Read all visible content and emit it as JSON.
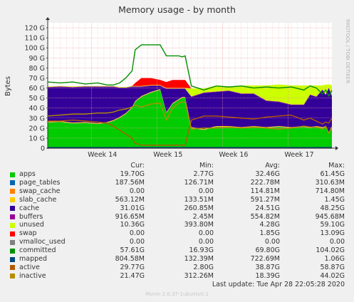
{
  "chart_data": {
    "type": "area",
    "title": "Memory usage - by month",
    "ylabel": "Bytes",
    "y_tick_labels": [
      "0",
      "10 G",
      "20 G",
      "30 G",
      "40 G",
      "50 G",
      "60 G",
      "70 G",
      "80 G",
      "90 G",
      "100 G",
      "110 G",
      "120 G"
    ],
    "x_tick_labels": [
      "Week 14",
      "Week 15",
      "Week 16",
      "Week 17"
    ],
    "ylim_gb": [
      0,
      125
    ],
    "watermark": "RRDTOOL / TOBI OETIKER",
    "grid": true,
    "x_days": [
      0,
      4,
      8,
      12,
      16,
      19,
      21,
      23,
      25,
      27,
      28,
      30,
      33,
      36,
      38,
      40,
      42,
      43,
      44,
      46,
      50,
      54,
      58,
      62,
      66,
      70,
      74,
      78,
      82,
      84,
      86,
      88,
      89,
      90,
      91
    ],
    "stacked_series_gb": [
      {
        "name": "apps",
        "color": "#00cc00",
        "values": [
          25.5,
          26,
          24.5,
          25,
          24,
          25,
          27,
          30,
          34,
          40,
          46,
          51,
          55,
          58,
          35,
          44,
          48,
          50,
          50,
          20,
          18,
          21,
          21,
          20,
          21,
          20,
          21,
          20,
          21,
          20,
          21,
          20,
          21,
          15,
          19.7
        ]
      },
      {
        "name": "page_tables",
        "color": "#0066b3",
        "values": [
          0.18,
          0.18,
          0.18,
          0.18,
          0.18,
          0.18,
          0.18,
          0.18,
          0.18,
          0.18,
          0.18,
          0.18,
          0.18,
          0.18,
          0.18,
          0.18,
          0.18,
          0.18,
          0.18,
          0.18,
          0.18,
          0.18,
          0.18,
          0.18,
          0.18,
          0.18,
          0.18,
          0.18,
          0.18,
          0.18,
          0.18,
          0.18,
          0.18,
          0.18,
          0.18
        ]
      },
      {
        "name": "swap_cache",
        "color": "#ff8000",
        "values": [
          0.2,
          0.2,
          0.2,
          0.2,
          0.2,
          0.2,
          0.2,
          0.2,
          0.2,
          0.2,
          0.2,
          0.2,
          0.2,
          0.2,
          0.2,
          0.2,
          0.2,
          0.2,
          0.2,
          0.2,
          0.2,
          0.2,
          0.2,
          0.2,
          0.2,
          0.2,
          0.2,
          0.2,
          0.2,
          0.2,
          0.2,
          0.2,
          0.2,
          0.2,
          0
        ]
      },
      {
        "name": "slab_cache",
        "color": "#ffcc00",
        "values": [
          0.6,
          0.6,
          0.6,
          0.6,
          0.6,
          0.6,
          0.6,
          0.6,
          0.6,
          0.6,
          0.6,
          0.6,
          0.6,
          0.6,
          0.6,
          0.6,
          0.6,
          0.6,
          0.6,
          0.6,
          0.6,
          0.6,
          0.6,
          0.6,
          0.6,
          0.6,
          0.6,
          0.6,
          0.6,
          0.6,
          0.6,
          0.6,
          0.6,
          0.6,
          0.56
        ]
      },
      {
        "name": "cache",
        "color": "#330099",
        "values": [
          34,
          34,
          35,
          35,
          36,
          35,
          33,
          29,
          25,
          20,
          14,
          9,
          6,
          3,
          23,
          14,
          10,
          8,
          8,
          30,
          36,
          34,
          35,
          33,
          32,
          26,
          24,
          22,
          21,
          32,
          29,
          37,
          31,
          44,
          31
        ]
      },
      {
        "name": "buffers",
        "color": "#990099",
        "values": [
          0.5,
          0.5,
          0.5,
          0.5,
          0.5,
          0.5,
          0.5,
          0.5,
          0.5,
          0.5,
          0.5,
          0.5,
          0.5,
          0.5,
          0.5,
          0.5,
          0.5,
          0.5,
          0.5,
          0.5,
          0.5,
          0.5,
          0.5,
          0.5,
          0.5,
          0.5,
          0.5,
          0.5,
          0.5,
          0.5,
          0.5,
          0.5,
          0.5,
          0.5,
          0.9
        ]
      },
      {
        "name": "unused",
        "color": "#ccff00",
        "values": [
          0.5,
          0.5,
          0.5,
          0.5,
          0.5,
          0.5,
          0.5,
          0.5,
          0.5,
          0.5,
          0.5,
          0.5,
          0.5,
          0.5,
          0.5,
          0.5,
          0.5,
          0.5,
          0.5,
          8,
          4,
          6,
          4,
          8,
          8,
          15,
          17,
          19,
          19,
          9,
          11,
          4,
          10,
          3,
          10.4
        ]
      },
      {
        "name": "swap",
        "color": "#ff0000",
        "values": [
          0,
          0,
          0,
          0,
          0,
          0,
          0,
          0,
          0,
          0,
          3,
          8,
          7,
          5,
          6,
          8,
          8,
          8,
          8,
          0,
          0,
          0,
          0,
          0,
          0,
          0,
          0,
          0,
          0,
          0,
          0,
          0,
          0,
          0,
          0
        ]
      }
    ],
    "line_series_gb": [
      {
        "name": "vmalloc_used",
        "color": "#808080",
        "values": [
          0,
          0,
          0,
          0,
          0,
          0,
          0,
          0,
          0,
          0,
          0,
          0,
          0,
          0,
          0,
          0,
          0,
          0,
          0,
          0,
          0,
          0,
          0,
          0,
          0,
          0,
          0,
          0,
          0,
          0,
          0,
          0,
          0,
          0,
          0
        ]
      },
      {
        "name": "committed",
        "color": "#008f00",
        "values": [
          66,
          65,
          66,
          64,
          65,
          63,
          63,
          65,
          70,
          77,
          98,
          103,
          103,
          103,
          92,
          92,
          92,
          91,
          92,
          62,
          58,
          62,
          61,
          62,
          60,
          61,
          60,
          61,
          58,
          62,
          60,
          54,
          58,
          52,
          57.6
        ]
      },
      {
        "name": "mapped",
        "color": "#00487d",
        "values": [
          0.7,
          0.7,
          0.7,
          0.7,
          0.7,
          0.7,
          0.7,
          0.7,
          0.7,
          0.7,
          0.7,
          0.7,
          0.7,
          0.7,
          0.7,
          0.7,
          0.7,
          0.7,
          0.7,
          0.7,
          0.7,
          0.7,
          0.7,
          0.7,
          0.7,
          0.7,
          0.7,
          0.7,
          0.7,
          0.7,
          0.7,
          0.7,
          0.7,
          0.7,
          0.8
        ]
      },
      {
        "name": "active",
        "color": "#b35a00",
        "values": [
          27,
          27,
          28,
          27,
          26,
          25,
          22,
          18,
          14,
          10,
          5,
          3,
          3,
          3,
          3,
          3,
          3,
          3,
          3,
          28,
          32,
          32,
          31,
          30,
          29,
          31,
          32,
          33,
          28,
          30,
          27,
          24,
          26,
          25,
          29.8
        ]
      },
      {
        "name": "inactive",
        "color": "#b38f00",
        "values": [
          32,
          33,
          34,
          34,
          35,
          35,
          36,
          38,
          39,
          41,
          43,
          41,
          44,
          45,
          28,
          40,
          45,
          46,
          46,
          19,
          20,
          20,
          21,
          20,
          21,
          20,
          19,
          20,
          22,
          21,
          21,
          19,
          22,
          15,
          21.5
        ]
      }
    ]
  },
  "legend": {
    "col_headers": {
      "cur": "Cur:",
      "min": "Min:",
      "avg": "Avg:",
      "max": "Max:"
    },
    "rows": [
      {
        "name": "apps",
        "color": "#00cc00",
        "cur": "19.70G",
        "min": "2.77G",
        "avg": "32.46G",
        "max": "61.45G"
      },
      {
        "name": "page_tables",
        "color": "#0066b3",
        "cur": "187.56M",
        "min": "126.71M",
        "avg": "222.78M",
        "max": "310.63M"
      },
      {
        "name": "swap_cache",
        "color": "#ff8000",
        "cur": "0.00",
        "min": "0.00",
        "avg": "114.81M",
        "max": "714.80M"
      },
      {
        "name": "slab_cache",
        "color": "#ffcc00",
        "cur": "563.12M",
        "min": "133.51M",
        "avg": "591.27M",
        "max": "1.45G"
      },
      {
        "name": "cache",
        "color": "#330099",
        "cur": "31.01G",
        "min": "260.85M",
        "avg": "24.51G",
        "max": "48.25G"
      },
      {
        "name": "buffers",
        "color": "#990099",
        "cur": "916.65M",
        "min": "2.45M",
        "avg": "554.82M",
        "max": "945.68M"
      },
      {
        "name": "unused",
        "color": "#ccff00",
        "cur": "10.36G",
        "min": "393.80M",
        "avg": "4.28G",
        "max": "59.10G"
      },
      {
        "name": "swap",
        "color": "#ff0000",
        "cur": "0.00",
        "min": "0.00",
        "avg": "1.85G",
        "max": "13.09G"
      },
      {
        "name": "vmalloc_used",
        "color": "#808080",
        "cur": "0.00",
        "min": "0.00",
        "avg": "0.00",
        "max": "0.00"
      },
      {
        "name": "committed",
        "color": "#008f00",
        "cur": "57.61G",
        "min": "16.93G",
        "avg": "69.80G",
        "max": "104.02G"
      },
      {
        "name": "mapped",
        "color": "#00487d",
        "cur": "804.58M",
        "min": "132.39M",
        "avg": "722.69M",
        "max": "1.06G"
      },
      {
        "name": "active",
        "color": "#b35a00",
        "cur": "29.77G",
        "min": "2.80G",
        "avg": "38.87G",
        "max": "58.87G"
      },
      {
        "name": "inactive",
        "color": "#b38f00",
        "cur": "21.47G",
        "min": "312.26M",
        "avg": "18.39G",
        "max": "44.02G"
      }
    ]
  },
  "footer": {
    "last_update": "Last update: Tue Apr 28 22:05:28 2020",
    "munin_version": "Munin 2.0.37-1ubuntu0.1"
  }
}
